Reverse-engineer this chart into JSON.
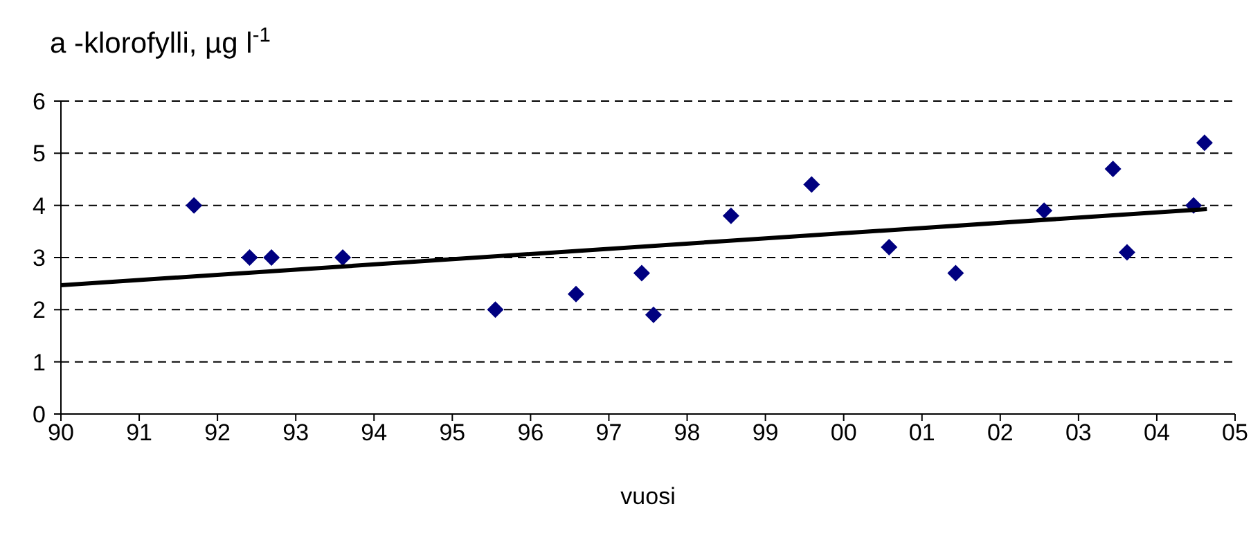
{
  "chart_data": {
    "type": "scatter",
    "ylabel": "a -klorofylli, µg l$^{-1}$",
    "xlabel": "vuosi",
    "series": [
      {
        "type": "scatter",
        "color": "#000080",
        "marker": "diamond",
        "x": [
          1991.7,
          1992.41,
          1992.69,
          1993.6,
          1995.55,
          1996.58,
          1997.42,
          1997.57,
          1998.56,
          1999.59,
          2000.58,
          2001.43,
          2002.56,
          2003.44,
          2003.62,
          2004.47,
          2004.61
        ],
        "values": [
          4.0,
          3.0,
          3.0,
          3.0,
          2.0,
          2.3,
          2.7,
          1.9,
          3.8,
          4.4,
          3.2,
          2.7,
          3.9,
          4.7,
          3.1,
          4.0,
          5.2
        ]
      },
      {
        "type": "line",
        "color": "#000000",
        "marker": "none",
        "line_style": "solid",
        "x": [
          1990,
          2004.64
        ],
        "values": [
          2.47,
          3.93
        ]
      }
    ],
    "xlim": [
      1990,
      2005
    ],
    "xticks": [
      {
        "value": 1990,
        "label": "90"
      },
      {
        "value": 1991,
        "label": "91"
      },
      {
        "value": 1992,
        "label": "92"
      },
      {
        "value": 1993,
        "label": "93"
      },
      {
        "value": 1994,
        "label": "94"
      },
      {
        "value": 1995,
        "label": "95"
      },
      {
        "value": 1996,
        "label": "96"
      },
      {
        "value": 1997,
        "label": "97"
      },
      {
        "value": 1998,
        "label": "98"
      },
      {
        "value": 1999,
        "label": "99"
      },
      {
        "value": 2000,
        "label": "00"
      },
      {
        "value": 2001,
        "label": "01"
      },
      {
        "value": 2002,
        "label": "02"
      },
      {
        "value": 2003,
        "label": "03"
      },
      {
        "value": 2004,
        "label": "04"
      },
      {
        "value": 2005,
        "label": "05"
      }
    ],
    "ylim": [
      0,
      6
    ],
    "yticks": [
      0,
      1,
      2,
      3,
      4,
      5,
      6
    ],
    "grid": "y"
  }
}
